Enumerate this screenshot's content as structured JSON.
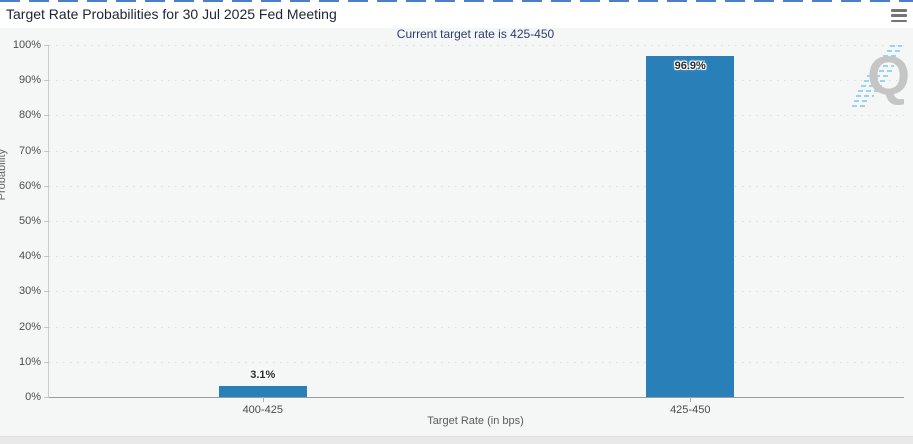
{
  "header": {
    "menu_icon": "hamburger-icon"
  },
  "ui": {
    "background": "#f5f6f6",
    "accent_top_border": "#4b7fc9",
    "header_background": "#ffffff",
    "watermark_letter": "Q",
    "watermark_color": "#c5c5c5",
    "watermark_dash_color": "#9ad3ea"
  },
  "chart_data": {
    "type": "bar",
    "title": "Target Rate Probabilities for 30 Jul 2025 Fed Meeting",
    "subtitle": "Current target rate is 425-450",
    "categories": [
      "400-425",
      "425-450"
    ],
    "values": [
      3.1,
      96.9
    ],
    "value_labels": [
      "3.1%",
      "96.9%"
    ],
    "xlabel": "Target Rate (in bps)",
    "ylabel": "Probability",
    "ylim": [
      0,
      100
    ],
    "y_tick_step": 10,
    "y_tick_labels": [
      "0%",
      "10%",
      "20%",
      "30%",
      "40%",
      "50%",
      "60%",
      "70%",
      "80%",
      "90%",
      "100%"
    ],
    "bar_color": "#2980b9",
    "grid": "horizontal-dotted",
    "legend": "none"
  }
}
